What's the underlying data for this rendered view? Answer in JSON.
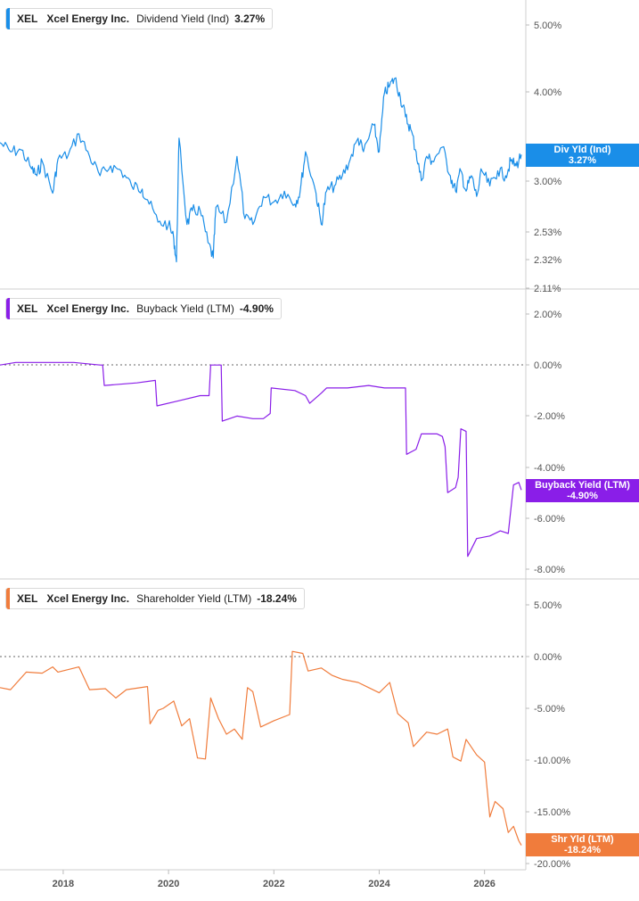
{
  "x_axis": {
    "ticks": [
      "2018",
      "2020",
      "2022",
      "2024",
      "2026"
    ]
  },
  "panels": [
    {
      "ticker": "XEL",
      "company": "Xcel Energy Inc.",
      "metric": "Dividend Yield (Ind)",
      "value": "3.27%",
      "color": "#1a8ee8",
      "badge": {
        "label": "Div Yld (Ind)",
        "value": "3.27%"
      },
      "y_ticks": [
        "5.00%",
        "4.00%",
        "3.00%",
        "2.53%",
        "2.32%",
        "2.11%"
      ]
    },
    {
      "ticker": "XEL",
      "company": "Xcel Energy Inc.",
      "metric": "Buyback Yield (LTM)",
      "value": "-4.90%",
      "color": "#8a1ee8",
      "badge": {
        "label": "Buyback Yield (LTM)",
        "value": "-4.90%"
      },
      "y_ticks": [
        "2.00%",
        "0.00%",
        "-2.00%",
        "-4.00%",
        "-6.00%",
        "-8.00%"
      ]
    },
    {
      "ticker": "XEL",
      "company": "Xcel Energy Inc.",
      "metric": "Shareholder Yield (LTM)",
      "value": "-18.24%",
      "color": "#f07c3c",
      "badge": {
        "label": "Shr Yld (LTM)",
        "value": "-18.24%"
      },
      "y_ticks": [
        "5.00%",
        "0.00%",
        "-5.00%",
        "-10.00%",
        "-15.00%",
        "-20.00%"
      ]
    }
  ],
  "chart_data": [
    {
      "type": "line",
      "scale": "log",
      "ylim": [
        2.11,
        5.4
      ],
      "xlim": [
        2016.8,
        2026.75
      ],
      "series": [
        {
          "name": "Dividend Yield (Ind)",
          "points": [
            [
              2016.8,
              3.4
            ],
            [
              2017.0,
              3.3
            ],
            [
              2017.2,
              3.32
            ],
            [
              2017.4,
              3.12
            ],
            [
              2017.5,
              3.05
            ],
            [
              2017.6,
              3.2
            ],
            [
              2017.8,
              2.88
            ],
            [
              2017.9,
              3.22
            ],
            [
              2018.1,
              3.27
            ],
            [
              2018.3,
              3.5
            ],
            [
              2018.5,
              3.25
            ],
            [
              2018.7,
              3.05
            ],
            [
              2018.9,
              3.15
            ],
            [
              2019.1,
              3.1
            ],
            [
              2019.3,
              2.95
            ],
            [
              2019.5,
              2.92
            ],
            [
              2019.6,
              2.82
            ],
            [
              2019.8,
              2.62
            ],
            [
              2020.0,
              2.6
            ],
            [
              2020.1,
              2.48
            ],
            [
              2020.15,
              2.3
            ],
            [
              2020.2,
              3.45
            ],
            [
              2020.35,
              2.6
            ],
            [
              2020.45,
              2.72
            ],
            [
              2020.6,
              2.72
            ],
            [
              2020.75,
              2.45
            ],
            [
              2020.85,
              2.33
            ],
            [
              2020.9,
              2.75
            ],
            [
              2021.1,
              2.62
            ],
            [
              2021.3,
              3.25
            ],
            [
              2021.45,
              2.65
            ],
            [
              2021.6,
              2.6
            ],
            [
              2021.8,
              2.85
            ],
            [
              2022.0,
              2.8
            ],
            [
              2022.2,
              2.9
            ],
            [
              2022.4,
              2.78
            ],
            [
              2022.5,
              2.9
            ],
            [
              2022.6,
              3.3
            ],
            [
              2022.8,
              2.88
            ],
            [
              2022.9,
              2.6
            ],
            [
              2023.0,
              2.9
            ],
            [
              2023.15,
              2.95
            ],
            [
              2023.3,
              3.05
            ],
            [
              2023.45,
              3.22
            ],
            [
              2023.6,
              3.45
            ],
            [
              2023.7,
              3.3
            ],
            [
              2023.9,
              3.6
            ],
            [
              2024.0,
              3.3
            ],
            [
              2024.1,
              4.0
            ],
            [
              2024.2,
              4.1
            ],
            [
              2024.3,
              4.2
            ],
            [
              2024.4,
              3.95
            ],
            [
              2024.5,
              3.7
            ],
            [
              2024.6,
              3.55
            ],
            [
              2024.7,
              3.3
            ],
            [
              2024.8,
              3.0
            ],
            [
              2024.9,
              3.25
            ],
            [
              2025.0,
              3.2
            ],
            [
              2025.2,
              3.35
            ],
            [
              2025.35,
              3.05
            ],
            [
              2025.45,
              2.9
            ],
            [
              2025.55,
              3.1
            ],
            [
              2025.65,
              2.9
            ],
            [
              2025.75,
              3.05
            ],
            [
              2025.85,
              2.85
            ],
            [
              2025.95,
              3.1
            ],
            [
              2026.1,
              2.95
            ],
            [
              2026.25,
              3.1
            ],
            [
              2026.4,
              3.05
            ],
            [
              2026.5,
              3.2
            ],
            [
              2026.6,
              3.15
            ],
            [
              2026.7,
              3.27
            ]
          ]
        }
      ]
    },
    {
      "type": "line",
      "ylim": [
        -8.5,
        3
      ],
      "xlim": [
        2016.8,
        2026.75
      ],
      "series": [
        {
          "name": "Buyback Yield (LTM)",
          "points": [
            [
              2016.8,
              0.0
            ],
            [
              2017.1,
              0.1
            ],
            [
              2017.7,
              0.1
            ],
            [
              2018.2,
              0.1
            ],
            [
              2018.7,
              0.0
            ],
            [
              2018.75,
              0.0
            ],
            [
              2018.78,
              -0.8
            ],
            [
              2019.4,
              -0.7
            ],
            [
              2019.75,
              -0.6
            ],
            [
              2019.78,
              -1.6
            ],
            [
              2020.2,
              -1.4
            ],
            [
              2020.6,
              -1.2
            ],
            [
              2020.77,
              -1.2
            ],
            [
              2020.8,
              0.0
            ],
            [
              2021.0,
              0.0
            ],
            [
              2021.02,
              -2.2
            ],
            [
              2021.3,
              -2.0
            ],
            [
              2021.6,
              -2.1
            ],
            [
              2021.8,
              -2.1
            ],
            [
              2021.93,
              -1.9
            ],
            [
              2021.95,
              -0.9
            ],
            [
              2022.4,
              -1.0
            ],
            [
              2022.6,
              -1.2
            ],
            [
              2022.68,
              -1.5
            ],
            [
              2022.9,
              -1.1
            ],
            [
              2023.0,
              -0.9
            ],
            [
              2023.4,
              -0.9
            ],
            [
              2023.8,
              -0.8
            ],
            [
              2024.1,
              -0.9
            ],
            [
              2024.5,
              -0.9
            ],
            [
              2024.52,
              -3.5
            ],
            [
              2024.7,
              -3.3
            ],
            [
              2024.8,
              -2.7
            ],
            [
              2025.1,
              -2.7
            ],
            [
              2025.2,
              -2.8
            ],
            [
              2025.25,
              -3.2
            ],
            [
              2025.3,
              -5.0
            ],
            [
              2025.45,
              -4.8
            ],
            [
              2025.5,
              -4.4
            ],
            [
              2025.55,
              -2.5
            ],
            [
              2025.65,
              -2.6
            ],
            [
              2025.68,
              -7.5
            ],
            [
              2025.85,
              -6.8
            ],
            [
              2026.1,
              -6.7
            ],
            [
              2026.3,
              -6.5
            ],
            [
              2026.45,
              -6.6
            ],
            [
              2026.55,
              -4.7
            ],
            [
              2026.65,
              -4.6
            ],
            [
              2026.7,
              -4.9
            ]
          ]
        }
      ]
    },
    {
      "type": "line",
      "ylim": [
        -20.5,
        7
      ],
      "xlim": [
        2016.8,
        2026.75
      ],
      "series": [
        {
          "name": "Shareholder Yield (LTM)",
          "points": [
            [
              2016.8,
              -3.0
            ],
            [
              2017.0,
              -3.2
            ],
            [
              2017.3,
              -1.5
            ],
            [
              2017.6,
              -1.6
            ],
            [
              2017.8,
              -1.0
            ],
            [
              2017.9,
              -1.5
            ],
            [
              2018.3,
              -1.0
            ],
            [
              2018.5,
              -3.2
            ],
            [
              2018.8,
              -3.1
            ],
            [
              2019.0,
              -4.0
            ],
            [
              2019.2,
              -3.2
            ],
            [
              2019.6,
              -2.9
            ],
            [
              2019.65,
              -6.5
            ],
            [
              2019.8,
              -5.2
            ],
            [
              2019.9,
              -5.0
            ],
            [
              2020.1,
              -4.3
            ],
            [
              2020.25,
              -6.7
            ],
            [
              2020.4,
              -6.0
            ],
            [
              2020.55,
              -9.8
            ],
            [
              2020.7,
              -9.9
            ],
            [
              2020.8,
              -4.0
            ],
            [
              2020.95,
              -6.0
            ],
            [
              2021.1,
              -7.5
            ],
            [
              2021.25,
              -7.0
            ],
            [
              2021.4,
              -8.0
            ],
            [
              2021.5,
              -3.0
            ],
            [
              2021.6,
              -3.4
            ],
            [
              2021.75,
              -6.8
            ],
            [
              2022.0,
              -6.2
            ],
            [
              2022.3,
              -5.6
            ],
            [
              2022.35,
              0.5
            ],
            [
              2022.55,
              0.3
            ],
            [
              2022.65,
              -1.4
            ],
            [
              2022.9,
              -1.1
            ],
            [
              2023.1,
              -1.8
            ],
            [
              2023.3,
              -2.2
            ],
            [
              2023.6,
              -2.5
            ],
            [
              2023.8,
              -3.0
            ],
            [
              2024.0,
              -3.5
            ],
            [
              2024.2,
              -2.5
            ],
            [
              2024.35,
              -5.5
            ],
            [
              2024.55,
              -6.4
            ],
            [
              2024.65,
              -8.7
            ],
            [
              2024.9,
              -7.3
            ],
            [
              2025.1,
              -7.5
            ],
            [
              2025.3,
              -7.0
            ],
            [
              2025.4,
              -9.7
            ],
            [
              2025.55,
              -10.1
            ],
            [
              2025.65,
              -8.0
            ],
            [
              2025.85,
              -9.5
            ],
            [
              2026.0,
              -10.2
            ],
            [
              2026.1,
              -15.5
            ],
            [
              2026.2,
              -14.0
            ],
            [
              2026.35,
              -14.7
            ],
            [
              2026.45,
              -17.0
            ],
            [
              2026.55,
              -16.4
            ],
            [
              2026.65,
              -17.8
            ],
            [
              2026.7,
              -18.24
            ]
          ]
        }
      ]
    }
  ]
}
